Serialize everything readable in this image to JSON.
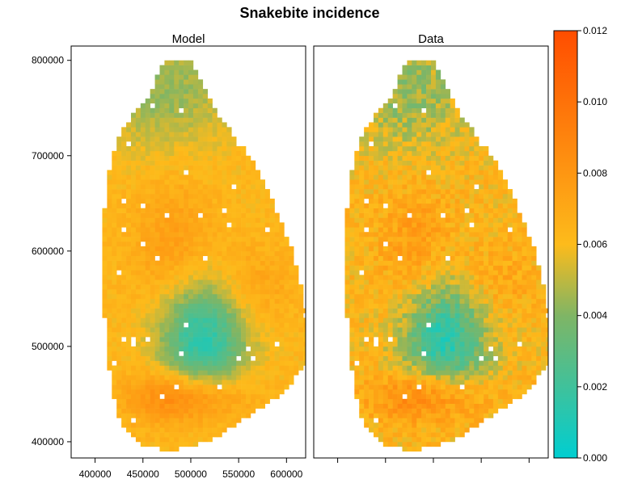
{
  "chart_data": {
    "type": "heatmap",
    "title": "Snakebite incidence",
    "panels": [
      {
        "name": "Model"
      },
      {
        "name": "Data"
      }
    ],
    "xlim": [
      375000,
      620000
    ],
    "ylim": [
      383000,
      815000
    ],
    "x_ticks": [
      400000,
      450000,
      500000,
      550000,
      600000
    ],
    "y_ticks": [
      400000,
      500000,
      600000,
      700000,
      800000
    ],
    "x_tick_labels": [
      "400000",
      "450000",
      "500000",
      "550000",
      "600000"
    ],
    "y_tick_labels": [
      "400000",
      "500000",
      "600000",
      "700000",
      "800000"
    ],
    "colorbar": {
      "range": [
        0,
        0.012
      ],
      "ticks": [
        0.0,
        0.002,
        0.004,
        0.006,
        0.008,
        0.01,
        0.012
      ],
      "tick_labels": [
        "0.000",
        "0.002",
        "0.004",
        "0.006",
        "0.008",
        "0.010",
        "0.012"
      ],
      "colors": [
        "#00CED1",
        "#7FB565",
        "#FDBB1B",
        "#FF4D00"
      ]
    },
    "grid": false,
    "legend": "right"
  }
}
